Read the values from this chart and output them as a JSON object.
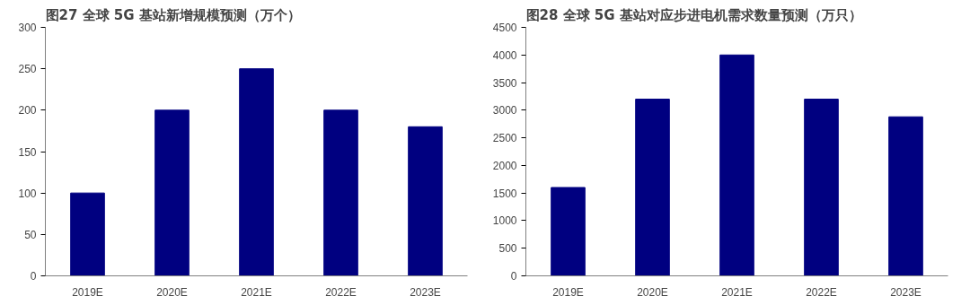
{
  "chart_data": [
    {
      "type": "bar",
      "title": "图27 全球 5G 基站新增规模预测（万个）",
      "categories": [
        "2019E",
        "2020E",
        "2021E",
        "2022E",
        "2023E"
      ],
      "values": [
        100,
        200,
        250,
        200,
        180
      ],
      "color": "#000080",
      "ylim": [
        0,
        300
      ],
      "yticks": [
        0,
        50,
        100,
        150,
        200,
        250,
        300
      ],
      "grid": false
    },
    {
      "type": "bar",
      "title": "图28 全球 5G 基站对应步进电机需求数量预测（万只）",
      "categories": [
        "2019E",
        "2020E",
        "2021E",
        "2022E",
        "2023E"
      ],
      "values": [
        1600,
        3200,
        4000,
        3200,
        2880
      ],
      "color": "#000080",
      "ylim": [
        0,
        4500
      ],
      "yticks": [
        0,
        500,
        1000,
        1500,
        2000,
        2500,
        3000,
        3500,
        4000,
        4500
      ],
      "grid": false
    }
  ]
}
